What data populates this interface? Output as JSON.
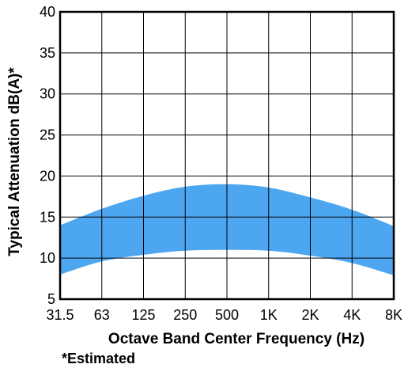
{
  "chart_data": {
    "type": "area",
    "title": "",
    "xlabel": "Octave Band Center Frequency (Hz)",
    "ylabel": "Typical Attenuation dB(A)*",
    "note": "*Estimated",
    "categories": [
      "31.5",
      "63",
      "125",
      "250",
      "500",
      "1K",
      "2K",
      "4K",
      "8K"
    ],
    "yticks": [
      5,
      10,
      15,
      20,
      25,
      30,
      35,
      40
    ],
    "ylim": [
      5,
      40
    ],
    "grid": true,
    "band_color": "#4da6f0",
    "series": [
      {
        "values": [
          8.0,
          9.6,
          10.4,
          10.9,
          11.0,
          10.9,
          10.3,
          9.4,
          7.9
        ]
      },
      {
        "values": [
          14.0,
          16.0,
          17.6,
          18.7,
          19.0,
          18.6,
          17.4,
          15.9,
          13.9
        ]
      }
    ]
  }
}
